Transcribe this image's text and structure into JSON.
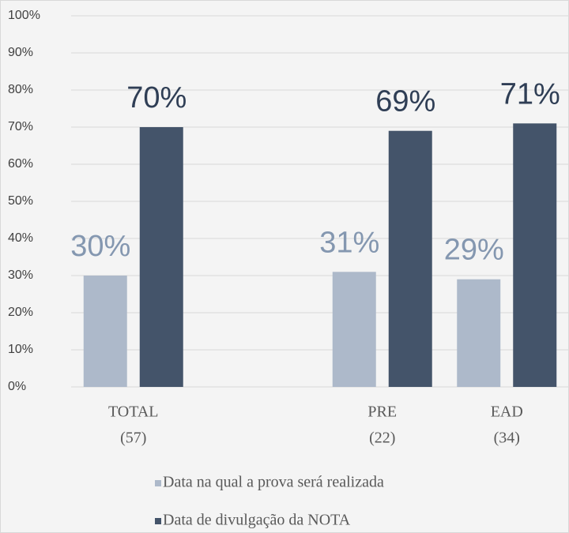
{
  "chart_data": {
    "type": "bar",
    "categories": [
      [
        "TOTAL",
        "(57)"
      ],
      null,
      [
        "PRE",
        "(22)"
      ],
      [
        "EAD",
        "(34)"
      ]
    ],
    "series": [
      {
        "name": "Data na qual a prova será realizada",
        "color": "#adb9ca",
        "label_color": "#8497b0",
        "values": [
          30,
          null,
          31,
          29
        ],
        "value_labels": [
          "30%",
          null,
          "31%",
          "29%"
        ]
      },
      {
        "name": "Data de divulgação da NOTA",
        "color": "#44546a",
        "label_color": "#2f3e55",
        "values": [
          70,
          null,
          69,
          71
        ],
        "value_labels": [
          "70%",
          null,
          "69%",
          "71%"
        ]
      }
    ],
    "ylim": [
      0,
      100
    ],
    "yticks": [
      {
        "value": 0,
        "label": "0%"
      },
      {
        "value": 10,
        "label": "10%"
      },
      {
        "value": 20,
        "label": "20%"
      },
      {
        "value": 30,
        "label": "30%"
      },
      {
        "value": 40,
        "label": "40%"
      },
      {
        "value": 50,
        "label": "50%"
      },
      {
        "value": 60,
        "label": "60%"
      },
      {
        "value": 70,
        "label": "70%"
      },
      {
        "value": 80,
        "label": "80%"
      },
      {
        "value": 90,
        "label": "90%"
      },
      {
        "value": 100,
        "label": "100%"
      }
    ],
    "grid": true
  }
}
